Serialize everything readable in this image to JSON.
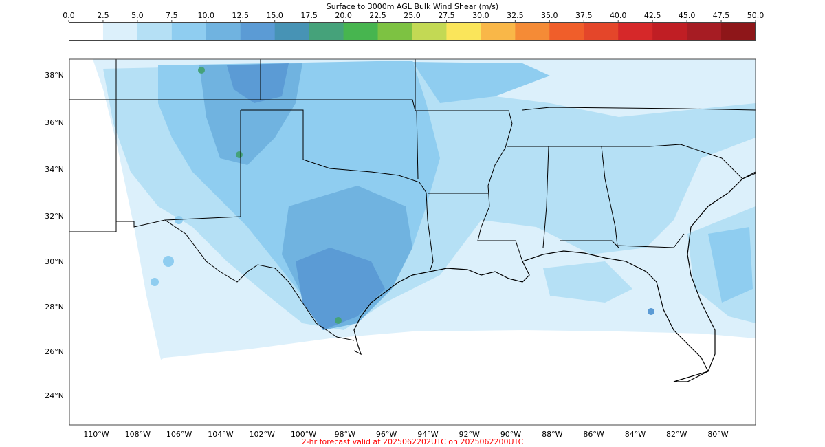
{
  "title": "Surface to 3000m AGL Bulk Wind Shear (m/s)",
  "colorbar": {
    "ticks": [
      "0.0",
      "2.5",
      "5.0",
      "7.5",
      "10.0",
      "12.5",
      "15.0",
      "17.5",
      "20.0",
      "22.5",
      "25.0",
      "27.5",
      "30.0",
      "32.5",
      "35.0",
      "37.5",
      "40.0",
      "42.5",
      "45.0",
      "47.5",
      "50.0"
    ],
    "colors": [
      "#ffffff",
      "#dcf0fb",
      "#b5e0f5",
      "#8fcdf0",
      "#70b3e0",
      "#5b9bd5",
      "#4793b5",
      "#45a27a",
      "#47b54f",
      "#7dc242",
      "#c3d954",
      "#fae55a",
      "#f9b748",
      "#f58b36",
      "#f05e2a",
      "#e4462a",
      "#d62829",
      "#c01e24",
      "#a61c23",
      "#8e1619"
    ]
  },
  "map": {
    "lat_labels": [
      "38°N",
      "36°N",
      "34°N",
      "32°N",
      "30°N",
      "28°N",
      "26°N",
      "24°N"
    ],
    "lon_labels": [
      "110°W",
      "108°W",
      "106°W",
      "104°W",
      "102°W",
      "100°W",
      "98°W",
      "96°W",
      "94°W",
      "92°W",
      "90°W",
      "88°W",
      "86°W",
      "84°W",
      "82°W",
      "80°W"
    ]
  },
  "caption": {
    "text": "2-hr forecast valid at 2025062202UTC on 2025062200UTC",
    "color": "#ff0000"
  }
}
